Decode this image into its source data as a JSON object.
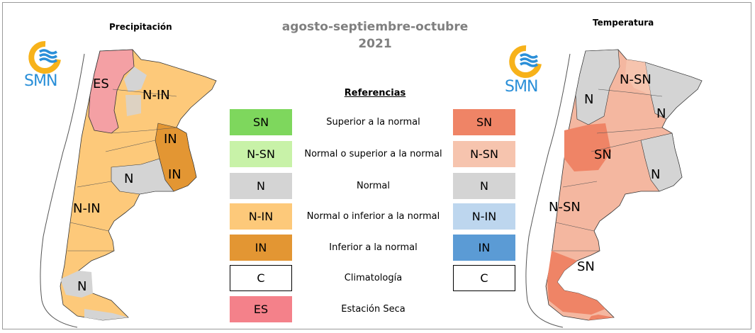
{
  "main_title_line1": "agosto-septiembre-octubre",
  "main_title_line2": "2021",
  "left_panel": {
    "title": "Precipitación",
    "logo_text": "SMN",
    "zones": [
      "ES",
      "N-IN",
      "IN",
      "IN",
      "N",
      "N-IN",
      "N"
    ]
  },
  "right_panel": {
    "title": "Temperatura",
    "logo_text": "SMN",
    "zones": [
      "N-SN",
      "N",
      "N",
      "SN",
      "N",
      "N-SN",
      "SN"
    ]
  },
  "legend": {
    "title": "Referencias",
    "rows": [
      {
        "label": "Superior a la normal",
        "precip_code": "SN",
        "precip_color": "#7ed75d",
        "temp_code": "SN",
        "temp_color": "#ef8466"
      },
      {
        "label": "Normal o superior a la normal",
        "precip_code": "N-SN",
        "precip_color": "#c8f2a8",
        "temp_code": "N-SN",
        "temp_color": "#f6c4ae"
      },
      {
        "label": "Normal",
        "precip_code": "N",
        "precip_color": "#d4d4d4",
        "temp_code": "N",
        "temp_color": "#d4d4d4"
      },
      {
        "label": "Normal o inferior a la normal",
        "precip_code": "N-IN",
        "precip_color": "#fdc97a",
        "temp_code": "N-IN",
        "temp_color": "#bdd6ee"
      },
      {
        "label": "Inferior a la normal",
        "precip_code": "IN",
        "precip_color": "#e39633",
        "temp_code": "IN",
        "temp_color": "#5b9bd5"
      },
      {
        "label": "Climatología",
        "precip_code": "C",
        "precip_color": "#ffffff",
        "temp_code": "C",
        "temp_color": "#ffffff"
      },
      {
        "label": "Estación Seca",
        "precip_code": "ES",
        "precip_color": "#f4818a"
      }
    ]
  },
  "colors": {
    "logo_blue": "#2a8fd8",
    "logo_yellow": "#f7b21a",
    "precip_base": "#fdc97a",
    "precip_in": "#e39633",
    "precip_es": "#f4a0a4",
    "normal_gray": "#d4d4d4",
    "temp_base": "#f4b7a0",
    "temp_sn": "#ef8466"
  }
}
